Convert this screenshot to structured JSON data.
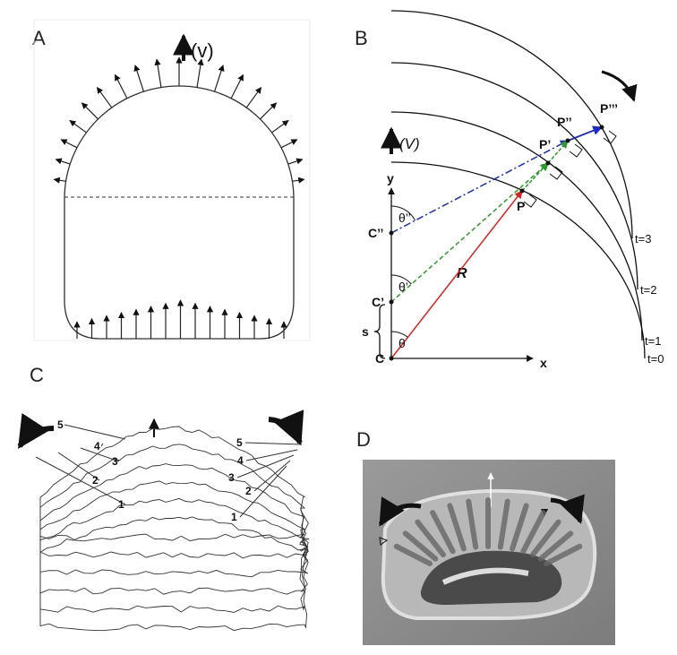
{
  "panels": {
    "a": {
      "label": "A",
      "velocity": "(v)"
    },
    "b": {
      "label": "B",
      "velocity": "(V)",
      "y_axis": "y",
      "x_axis": "x",
      "points": [
        "P",
        "P’",
        "P’’",
        "P’’’"
      ],
      "centers": [
        "C",
        "C’",
        "C’’"
      ],
      "angles": [
        "θ",
        "θ’",
        "θ’’"
      ],
      "radius": "R",
      "shift": "s",
      "times": [
        "t=0",
        "t=1",
        "t=2",
        "t=3"
      ]
    },
    "c": {
      "label": "C",
      "left_numbers": [
        "1",
        "2",
        "3",
        "4",
        "5"
      ],
      "right_numbers": [
        "1",
        "2",
        "3",
        "4",
        "5"
      ]
    },
    "d": {
      "label": "D"
    }
  }
}
